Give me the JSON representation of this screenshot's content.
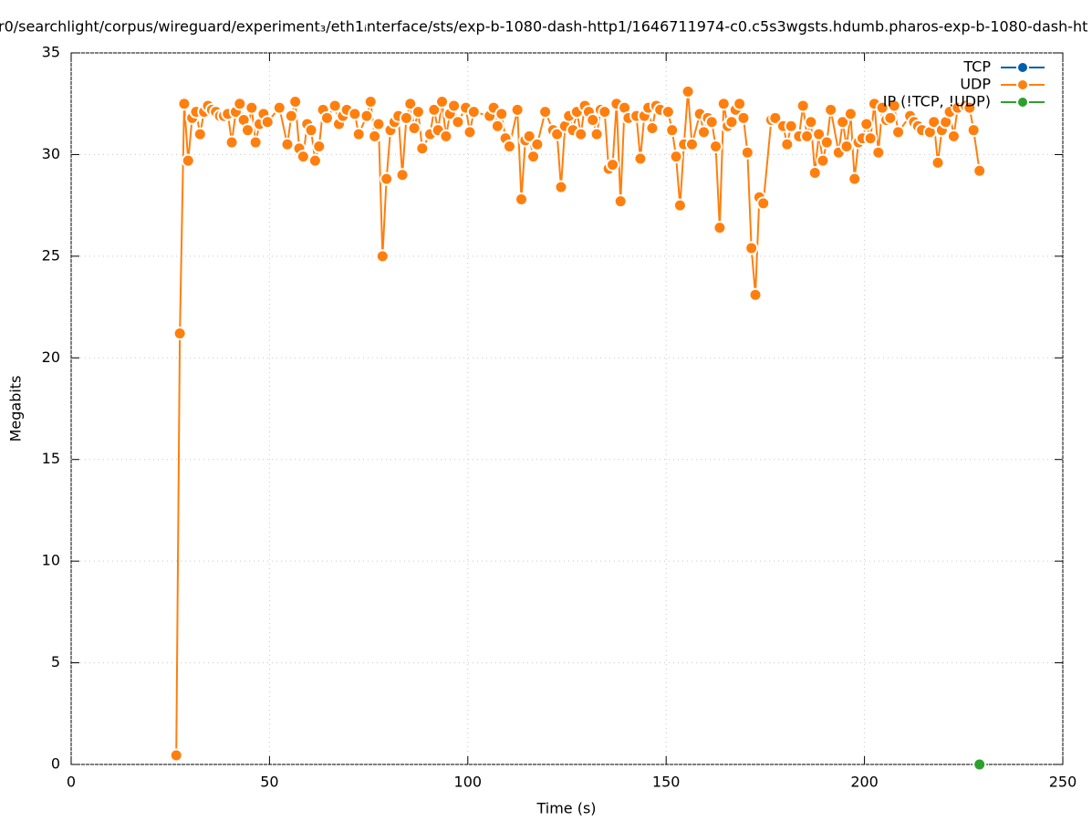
{
  "chart_data": {
    "type": "line",
    "title": "r0/searchlight/corpus/wireguard/experiment₃/eth1ᵢnterface/sts/exp-b-1080-dash-http1/1646711974-c0.c5s3wgsts.hdumb.pharos-exp-b-1080-dash-ht",
    "xlabel": "Time (s)",
    "ylabel": "Megabits",
    "xlim": [
      0,
      250
    ],
    "ylim": [
      0,
      35
    ],
    "xticks": [
      0,
      50,
      100,
      150,
      200,
      250
    ],
    "yticks": [
      0,
      5,
      10,
      15,
      20,
      25,
      30,
      35
    ],
    "grid": true,
    "legend": "top-right",
    "series": [
      {
        "name": "TCP",
        "color": "#0060ad",
        "x": [],
        "values": []
      },
      {
        "name": "UDP",
        "color": "#ff7f0e",
        "x": [
          26.5,
          27.4,
          28.5,
          29.5,
          30.5,
          31.5,
          32.5,
          33.5,
          34.5,
          35.5,
          36.5,
          37.5,
          38.5,
          39.5,
          40.5,
          41.5,
          42.5,
          43.5,
          44.5,
          45.5,
          46.5,
          47.5,
          48.5,
          49.5,
          52.5,
          54.5,
          55.5,
          56.5,
          57.5,
          58.5,
          59.5,
          60.5,
          61.5,
          62.5,
          63.5,
          64.5,
          66.5,
          67.5,
          68.5,
          69.5,
          71.5,
          72.5,
          74.5,
          75.5,
          76.5,
          77.5,
          78.5,
          79.5,
          80.5,
          81.5,
          82.5,
          83.5,
          84.5,
          85.5,
          86.5,
          87.5,
          88.5,
          90.5,
          91.5,
          92.5,
          93.5,
          94.5,
          95.5,
          96.5,
          97.5,
          99.5,
          100.5,
          101.5,
          105.5,
          106.5,
          107.5,
          108.5,
          109.5,
          110.5,
          112.5,
          113.5,
          114.5,
          115.5,
          116.5,
          117.5,
          119.5,
          121.5,
          122.5,
          123.5,
          124.5,
          125.5,
          126.5,
          127.5,
          128.5,
          129.5,
          130.5,
          131.5,
          132.5,
          133.5,
          134.5,
          135.5,
          136.5,
          137.5,
          138.5,
          139.5,
          140.5,
          142.5,
          143.5,
          144.5,
          145.5,
          146.5,
          147.5,
          148.5,
          150.5,
          151.5,
          152.5,
          153.5,
          154.5,
          155.5,
          156.5,
          158.5,
          159.5,
          160.5,
          161.5,
          162.5,
          163.5,
          164.5,
          165.5,
          166.5,
          167.5,
          168.5,
          169.5,
          170.5,
          171.5,
          172.5,
          173.5,
          174.5,
          176.5,
          177.5,
          179.5,
          180.5,
          181.5,
          183.5,
          184.5,
          185.5,
          186.5,
          187.5,
          188.5,
          189.5,
          190.5,
          191.5,
          193.5,
          194.5,
          195.5,
          196.5,
          197.5,
          198.5,
          199.5,
          200.5,
          201.5,
          202.5,
          203.5,
          204.5,
          205.5,
          206.5,
          207.5,
          208.5,
          211.5,
          212.5,
          213.5,
          214.5,
          216.5,
          217.5,
          218.5,
          219.5,
          220.5,
          221.5,
          222.5,
          223.5,
          225.5,
          226.5,
          227.5,
          229
        ],
        "values": [
          0.45,
          21.2,
          32.5,
          29.7,
          31.8,
          32.1,
          31.0,
          32.1,
          32.4,
          32.2,
          32.1,
          31.9,
          31.9,
          32.0,
          30.6,
          32.1,
          32.5,
          31.7,
          31.2,
          32.3,
          30.6,
          31.5,
          32.0,
          31.6,
          32.3,
          30.5,
          31.9,
          32.6,
          30.3,
          29.9,
          31.5,
          31.2,
          29.7,
          30.4,
          32.2,
          31.8,
          32.4,
          31.5,
          31.9,
          32.2,
          32.0,
          31.0,
          31.9,
          32.6,
          30.9,
          31.5,
          25.0,
          28.8,
          31.2,
          31.6,
          31.9,
          29.0,
          31.8,
          32.5,
          31.3,
          32.1,
          30.3,
          31.0,
          32.2,
          31.2,
          32.6,
          30.9,
          32.0,
          32.4,
          31.6,
          32.3,
          31.1,
          32.1,
          31.9,
          32.3,
          31.4,
          32.0,
          30.8,
          30.4,
          32.2,
          27.8,
          30.7,
          30.9,
          29.9,
          30.5,
          32.1,
          31.2,
          31.0,
          28.4,
          31.4,
          31.9,
          31.2,
          32.1,
          31.0,
          32.4,
          32.1,
          31.7,
          31.0,
          32.2,
          32.1,
          29.3,
          29.5,
          32.5,
          27.7,
          32.3,
          31.8,
          31.9,
          29.8,
          31.9,
          32.3,
          31.3,
          32.4,
          32.2,
          32.1,
          31.2,
          29.9,
          27.5,
          30.5,
          33.1,
          30.5,
          32.0,
          31.1,
          31.8,
          31.6,
          30.4,
          26.4,
          32.5,
          31.4,
          31.6,
          32.2,
          32.5,
          31.8,
          30.1,
          25.4,
          23.1,
          27.9,
          27.6,
          31.7,
          31.8,
          31.4,
          30.5,
          31.4,
          30.9,
          32.4,
          30.9,
          31.6,
          29.1,
          31.0,
          29.7,
          30.6,
          32.2,
          30.1,
          31.6,
          30.4,
          32.0,
          28.8,
          30.6,
          30.8,
          31.5,
          30.8,
          32.5,
          30.1,
          32.3,
          31.7,
          31.8,
          32.4,
          31.1,
          31.9,
          31.6,
          31.4,
          31.2,
          31.1,
          31.6,
          29.6,
          31.2,
          31.6,
          32.1,
          30.9,
          32.3,
          32.4,
          32.3,
          31.2,
          29.2
        ]
      },
      {
        "name": "IP (!TCP, !UDP)",
        "color": "#2ca02c",
        "x": [
          229
        ],
        "values": [
          0
        ]
      }
    ]
  }
}
